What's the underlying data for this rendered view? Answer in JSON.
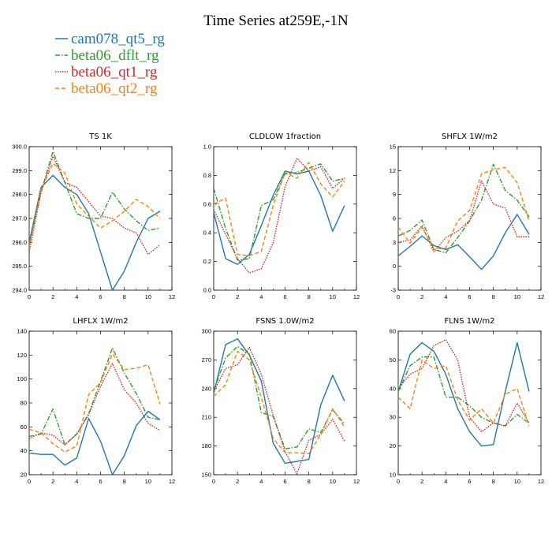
{
  "title": "Time Series at259E,-1N",
  "legend": [
    {
      "label": "cam078_qt5_rg",
      "color": "#1f77b4",
      "dash": "solid"
    },
    {
      "label": "beta06_dflt_rg",
      "color": "#2ca02c",
      "dash": "dashdot"
    },
    {
      "label": "beta06_qt1_rg",
      "color": "#d62728",
      "dash": "dotted"
    },
    {
      "label": "beta06_qt2_rg",
      "color": "#ff7f0e",
      "dash": "dashed"
    }
  ],
  "chart_data": [
    {
      "type": "line",
      "title": "TS   1K",
      "x": [
        0,
        1,
        2,
        3,
        4,
        5,
        6,
        7,
        8,
        9,
        10,
        11
      ],
      "xlim": [
        0,
        12
      ],
      "xticks": [
        "0",
        "2",
        "4",
        "6",
        "8",
        "10",
        "12"
      ],
      "ylim": [
        294.0,
        300.0
      ],
      "yticks": [
        "294.0",
        "295.0",
        "296.0",
        "297.0",
        "298.0",
        "299.0",
        "300.0"
      ],
      "series": [
        {
          "name": "cam078_qt5_rg",
          "values": [
            296.0,
            298.3,
            298.8,
            298.3,
            298.0,
            297.2,
            295.6,
            294.0,
            294.8,
            296.0,
            297.0,
            297.3
          ]
        },
        {
          "name": "beta06_dflt_rg",
          "values": [
            295.9,
            298.1,
            299.8,
            298.5,
            297.2,
            297.0,
            297.0,
            298.1,
            297.4,
            296.9,
            296.5,
            296.6
          ]
        },
        {
          "name": "beta06_qt1_rg",
          "values": [
            295.6,
            298.1,
            299.6,
            298.5,
            298.3,
            297.7,
            297.1,
            297.0,
            296.6,
            296.4,
            295.5,
            295.9
          ]
        },
        {
          "name": "beta06_qt2_rg",
          "values": [
            295.8,
            298.2,
            299.3,
            298.9,
            297.6,
            297.1,
            296.6,
            296.9,
            297.3,
            297.8,
            297.5,
            297.0
          ]
        }
      ]
    },
    {
      "type": "line",
      "title": "CLDLOW   1fraction",
      "x": [
        0,
        1,
        2,
        3,
        4,
        5,
        6,
        7,
        8,
        9,
        10,
        11
      ],
      "xlim": [
        0,
        12
      ],
      "xticks": [
        "0",
        "2",
        "4",
        "6",
        "8",
        "10",
        "12"
      ],
      "ylim": [
        0.0,
        1.0
      ],
      "yticks": [
        "0.0",
        "0.2",
        "0.4",
        "0.6",
        "0.8",
        "1.0"
      ],
      "series": [
        {
          "name": "cam078_qt5_rg",
          "values": [
            0.54,
            0.22,
            0.18,
            0.25,
            0.45,
            0.66,
            0.83,
            0.81,
            0.83,
            0.66,
            0.41,
            0.59
          ]
        },
        {
          "name": "beta06_dflt_rg",
          "values": [
            0.71,
            0.43,
            0.21,
            0.22,
            0.59,
            0.63,
            0.81,
            0.82,
            0.85,
            0.88,
            0.76,
            0.78
          ]
        },
        {
          "name": "beta06_qt1_rg",
          "values": [
            0.56,
            0.39,
            0.22,
            0.12,
            0.15,
            0.33,
            0.72,
            0.92,
            0.83,
            0.86,
            0.71,
            0.78
          ]
        },
        {
          "name": "beta06_qt2_rg",
          "values": [
            0.6,
            0.64,
            0.25,
            0.24,
            0.27,
            0.59,
            0.82,
            0.78,
            0.89,
            0.74,
            0.65,
            0.76
          ]
        }
      ]
    },
    {
      "type": "line",
      "title": "SHFLX   1W/m2",
      "x": [
        0,
        1,
        2,
        3,
        4,
        5,
        6,
        7,
        8,
        9,
        10,
        11
      ],
      "xlim": [
        0,
        12
      ],
      "xticks": [
        "0",
        "2",
        "4",
        "6",
        "8",
        "10",
        "12"
      ],
      "ylim": [
        -3,
        15
      ],
      "yticks": [
        "-3",
        "0",
        "3",
        "6",
        "9",
        "12",
        "15"
      ],
      "series": [
        {
          "name": "cam078_qt5_rg",
          "values": [
            1.3,
            2.5,
            3.8,
            2.6,
            2.1,
            2.7,
            1.2,
            -0.4,
            1.3,
            4.2,
            6.5,
            4.0
          ]
        },
        {
          "name": "beta06_dflt_rg",
          "values": [
            3.8,
            4.5,
            5.8,
            2.1,
            1.7,
            3.6,
            5.7,
            8.3,
            12.8,
            9.5,
            8.3,
            6.2
          ]
        },
        {
          "name": "beta06_qt1_rg",
          "values": [
            3.0,
            3.3,
            5.1,
            1.8,
            3.6,
            4.4,
            5.7,
            10.7,
            7.8,
            7.3,
            3.7,
            3.7
          ]
        },
        {
          "name": "beta06_qt2_rg",
          "values": [
            4.9,
            2.9,
            4.9,
            2.1,
            2.3,
            5.7,
            7.0,
            11.6,
            12.1,
            12.4,
            10.5,
            5.7
          ]
        }
      ]
    },
    {
      "type": "line",
      "title": "LHFLX   1W/m2",
      "x": [
        0,
        1,
        2,
        3,
        4,
        5,
        6,
        7,
        8,
        9,
        10,
        11
      ],
      "xlim": [
        0,
        12
      ],
      "xticks": [
        "0",
        "2",
        "4",
        "6",
        "8",
        "10",
        "12"
      ],
      "ylim": [
        20,
        140
      ],
      "yticks": [
        "20",
        "40",
        "60",
        "80",
        "100",
        "120",
        "140"
      ],
      "series": [
        {
          "name": "cam078_qt5_rg",
          "values": [
            38,
            37,
            37,
            28,
            34,
            67,
            48,
            20,
            36,
            61,
            73,
            66
          ]
        },
        {
          "name": "beta06_dflt_rg",
          "values": [
            52,
            54,
            75,
            45,
            54,
            71,
            98,
            126,
            105,
            88,
            68,
            66
          ]
        },
        {
          "name": "beta06_qt1_rg",
          "values": [
            50,
            55,
            53,
            45,
            54,
            70,
            94,
            113,
            91,
            80,
            63,
            57
          ]
        },
        {
          "name": "beta06_qt2_rg",
          "values": [
            58,
            55,
            46,
            39,
            44,
            87,
            97,
            121,
            108,
            109,
            112,
            79
          ]
        }
      ]
    },
    {
      "type": "line",
      "title": "FSNS   1.0W/m2",
      "x": [
        0,
        1,
        2,
        3,
        4,
        5,
        6,
        7,
        8,
        9,
        10,
        11
      ],
      "xlim": [
        0,
        12
      ],
      "xticks": [
        "0",
        "2",
        "4",
        "6",
        "8",
        "10",
        "12"
      ],
      "ylim": [
        150,
        300
      ],
      "yticks": [
        "150",
        "180",
        "210",
        "240",
        "270",
        "300"
      ],
      "series": [
        {
          "name": "cam078_qt5_rg",
          "values": [
            235,
            286,
            292,
            275,
            248,
            183,
            162,
            164,
            166,
            223,
            254,
            227
          ]
        },
        {
          "name": "beta06_dflt_rg",
          "values": [
            238,
            272,
            284,
            276,
            215,
            211,
            177,
            179,
            198,
            194,
            218,
            203
          ]
        },
        {
          "name": "beta06_qt1_rg",
          "values": [
            237,
            261,
            265,
            283,
            255,
            212,
            174,
            151,
            186,
            192,
            208,
            185
          ]
        },
        {
          "name": "beta06_qt2_rg",
          "values": [
            232,
            244,
            279,
            270,
            231,
            188,
            173,
            173,
            172,
            192,
            219,
            200
          ]
        }
      ]
    },
    {
      "type": "line",
      "title": "FLNS   1W/m2",
      "x": [
        0,
        1,
        2,
        3,
        4,
        5,
        6,
        7,
        8,
        9,
        10,
        11
      ],
      "xlim": [
        0,
        12
      ],
      "xticks": [
        "0",
        "2",
        "4",
        "6",
        "8",
        "10",
        "12"
      ],
      "ylim": [
        10,
        60
      ],
      "yticks": [
        "10",
        "20",
        "30",
        "40",
        "50",
        "60"
      ],
      "series": [
        {
          "name": "cam078_qt5_rg",
          "values": [
            39,
            52,
            56,
            53,
            45,
            33,
            25,
            20,
            20.5,
            39,
            56,
            39
          ]
        },
        {
          "name": "beta06_dflt_rg",
          "values": [
            39,
            48,
            51,
            51,
            37,
            37,
            34,
            30,
            28,
            27,
            31,
            28
          ]
        },
        {
          "name": "beta06_qt1_rg",
          "values": [
            40,
            45,
            47,
            55,
            57,
            50,
            30,
            25,
            28,
            27,
            35,
            28
          ]
        },
        {
          "name": "beta06_qt2_rg",
          "values": [
            37,
            33,
            50,
            47,
            48,
            36,
            29,
            33,
            28,
            38,
            40,
            27
          ]
        }
      ]
    }
  ]
}
